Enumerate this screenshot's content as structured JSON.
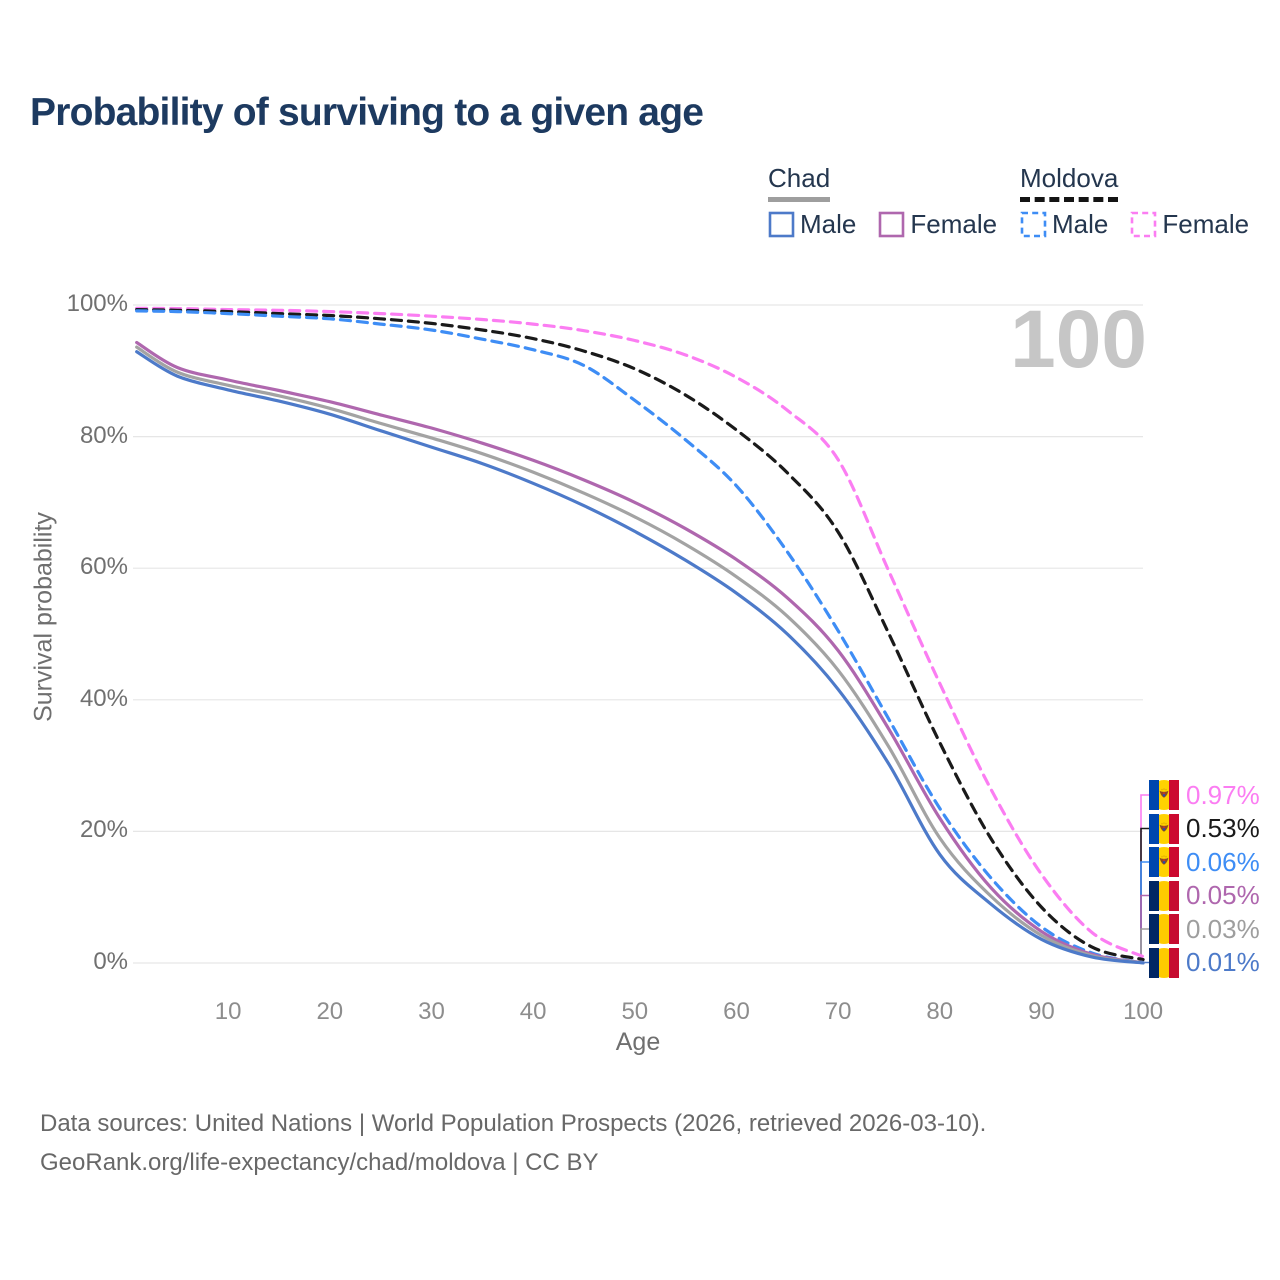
{
  "title": "Probability of surviving to a given age",
  "watermark_age": "100",
  "legend": {
    "groups": [
      {
        "label": "Chad",
        "line_style": "solid",
        "underline_color": "#9e9e9e",
        "items": [
          {
            "label": "Male",
            "color": "#4d7ac9"
          },
          {
            "label": "Female",
            "color": "#af67ae"
          }
        ]
      },
      {
        "label": "Moldova",
        "line_style": "dashed",
        "underline_color": "#141414",
        "items": [
          {
            "label": "Male",
            "color": "#3e8df5"
          },
          {
            "label": "Female",
            "color": "#fb7df2"
          }
        ]
      }
    ]
  },
  "axes": {
    "xlabel": "Age",
    "ylabel": "Survival probability",
    "x_ticks": [
      10,
      20,
      30,
      40,
      50,
      60,
      70,
      80,
      90,
      100
    ],
    "y_ticks": [
      "0%",
      "20%",
      "40%",
      "60%",
      "80%",
      "100%"
    ]
  },
  "end_labels": [
    {
      "value": "0.97%",
      "color": "#fb7df2",
      "flag": "moldova",
      "series": "Moldova Female"
    },
    {
      "value": "0.53%",
      "color": "#1a1a1a",
      "flag": "moldova",
      "series": "Moldova Total"
    },
    {
      "value": "0.06%",
      "color": "#3e8df5",
      "flag": "moldova",
      "series": "Moldova Male"
    },
    {
      "value": "0.05%",
      "color": "#af67ae",
      "flag": "chad",
      "series": "Chad Female"
    },
    {
      "value": "0.03%",
      "color": "#9e9e9e",
      "flag": "chad",
      "series": "Chad Total"
    },
    {
      "value": "0.01%",
      "color": "#4d7ac9",
      "flag": "chad",
      "series": "Chad Male"
    }
  ],
  "flags": {
    "chad": [
      "#002664",
      "#FECB00",
      "#C60C30"
    ],
    "moldova": [
      "#0046AE",
      "#FFD200",
      "#CC092F"
    ]
  },
  "footer": {
    "line1": "Data sources: United Nations | World Population Prospects (2026, retrieved 2026-03-10).",
    "line2": "GeoRank.org/life-expectancy/chad/moldova | CC BY"
  },
  "chart_data": {
    "type": "line",
    "title": "Probability of surviving to a given age",
    "xlabel": "Age",
    "ylabel": "Survival probability",
    "xlim": [
      0,
      100
    ],
    "ylim_percent": [
      0,
      100
    ],
    "grid": "horizontal",
    "legend_position": "top-right",
    "ages": [
      1,
      5,
      10,
      15,
      20,
      25,
      30,
      35,
      40,
      45,
      50,
      55,
      60,
      65,
      70,
      75,
      80,
      85,
      90,
      95,
      100
    ],
    "series": [
      {
        "name": "Moldova Female",
        "country": "Moldova",
        "sex": "Female",
        "color": "#fb7df2",
        "dash": true,
        "values_percent": [
          99.5,
          99.45,
          99.3,
          99.2,
          99.0,
          98.7,
          98.3,
          97.8,
          97.1,
          96.1,
          94.6,
          92.4,
          89.0,
          84.0,
          76.5,
          59.5,
          42.5,
          26.5,
          13.5,
          4.6,
          0.97
        ]
      },
      {
        "name": "Moldova Total",
        "country": "Moldova",
        "sex": "Both",
        "color": "#1a1a1a",
        "dash": true,
        "values_percent": [
          99.3,
          99.2,
          99.0,
          98.7,
          98.4,
          97.9,
          97.2,
          96.2,
          94.9,
          93.0,
          90.3,
          86.3,
          81.0,
          74.5,
          65.5,
          50.0,
          33.5,
          19.0,
          8.5,
          2.4,
          0.53
        ]
      },
      {
        "name": "Moldova Male",
        "country": "Moldova",
        "sex": "Male",
        "color": "#3e8df5",
        "dash": true,
        "values_percent": [
          99.1,
          99.0,
          98.7,
          98.3,
          97.9,
          97.1,
          96.2,
          94.8,
          93.2,
          90.8,
          85.5,
          79.5,
          72.5,
          62.5,
          50.5,
          37.0,
          23.5,
          13.0,
          5.5,
          1.5,
          0.06
        ]
      },
      {
        "name": "Chad Female",
        "country": "Chad",
        "sex": "Female",
        "color": "#af67ae",
        "dash": false,
        "values_percent": [
          94.3,
          90.5,
          88.6,
          87.0,
          85.3,
          83.3,
          81.3,
          79.0,
          76.4,
          73.4,
          70.0,
          66.0,
          61.3,
          55.5,
          47.5,
          35.5,
          22.0,
          11.5,
          4.8,
          1.3,
          0.05
        ]
      },
      {
        "name": "Chad Total",
        "country": "Chad",
        "sex": "Both",
        "color": "#a3a3a3",
        "dash": false,
        "values_percent": [
          93.6,
          89.8,
          87.8,
          86.2,
          84.3,
          82.0,
          79.8,
          77.4,
          74.6,
          71.4,
          67.8,
          63.6,
          58.7,
          52.7,
          44.5,
          32.8,
          19.0,
          10.2,
          4.2,
          1.1,
          0.03
        ]
      },
      {
        "name": "Chad Male",
        "country": "Chad",
        "sex": "Male",
        "color": "#4d7ac9",
        "dash": false,
        "values_percent": [
          92.9,
          89.2,
          87.1,
          85.4,
          83.4,
          80.9,
          78.4,
          75.9,
          72.9,
          69.5,
          65.6,
          61.2,
          56.2,
          50.0,
          41.6,
          30.2,
          16.5,
          9.0,
          3.6,
          0.9,
          0.01
        ]
      }
    ]
  }
}
